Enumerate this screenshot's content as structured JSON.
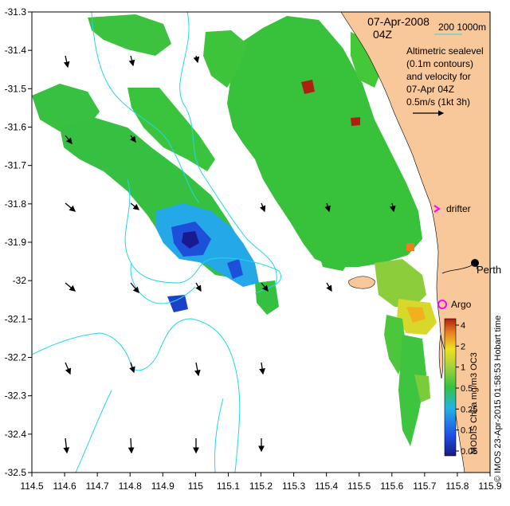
{
  "header": {
    "date": "07-Apr-2008",
    "time": "04Z",
    "scale_label": "200  1000m"
  },
  "legend_note": {
    "lines": [
      "Altimetric sealevel",
      "(0.1m contours)",
      "and velocity for",
      "07-Apr 04Z",
      "0.5m/s (1kt 3h)"
    ]
  },
  "places": {
    "city": "Perth",
    "drifter": "drifter",
    "argo": "Argo"
  },
  "credits": {
    "product": "MODIS Chl-a mg/m3 OC3",
    "imos": "© IMOS 23-Apr-2015 01:58:53 Hobart time"
  },
  "colorbar": {
    "ticks": [
      "4",
      "2",
      "1",
      "0.5",
      "0.25",
      "0.1",
      "0.05"
    ]
  },
  "axes": {
    "x_ticks": [
      "114.5",
      "114.6",
      "114.7",
      "114.8",
      "114.9",
      "115",
      "115.1",
      "115.2",
      "115.3",
      "115.4",
      "115.5",
      "115.6",
      "115.7",
      "115.8",
      "115.9"
    ],
    "y_ticks": [
      "-31.3",
      "-31.4",
      "-31.5",
      "-31.6",
      "-31.7",
      "-31.8",
      "-31.9",
      "-32",
      "-32.1",
      "-32.2",
      "-32.3",
      "-32.4",
      "-32.5"
    ]
  },
  "colors": {
    "land": "#f9c89a",
    "contour": "#22d8e8",
    "chl_green": "#34c240",
    "chl_low": "#1f60e8",
    "chl_high": "#f0e020",
    "drifter": "#ff00ff",
    "argo": "#ff00ff"
  }
}
